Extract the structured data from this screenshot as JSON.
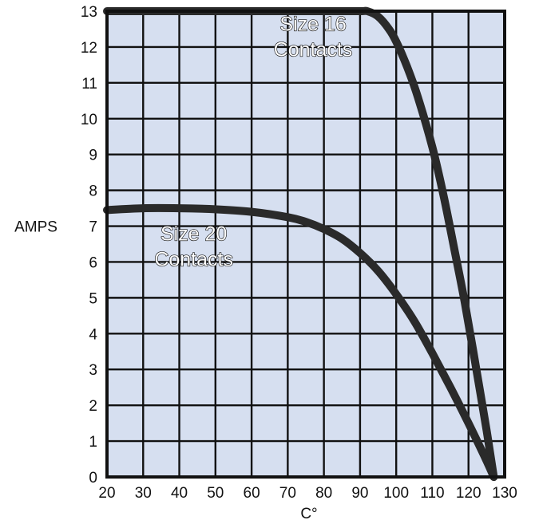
{
  "chart_data": {
    "type": "line",
    "title": "",
    "xlabel": "C°",
    "ylabel": "AMPS",
    "xlim": [
      20,
      130
    ],
    "ylim": [
      0,
      13
    ],
    "xticks": [
      20,
      30,
      40,
      50,
      60,
      70,
      80,
      90,
      100,
      110,
      120,
      130
    ],
    "yticks": [
      0,
      1,
      2,
      3,
      4,
      5,
      6,
      7,
      8,
      9,
      10,
      11,
      12,
      13
    ],
    "grid": true,
    "legend": "none",
    "colors": {
      "plot_background": "#d6dff0",
      "grid": "#111111",
      "series": "#2a2a2a"
    },
    "series": [
      {
        "name_lines": [
          "Size 16",
          "Contacts"
        ],
        "label_at": [
          77,
          12.45
        ],
        "x": [
          20,
          30,
          40,
          50,
          60,
          70,
          80,
          90,
          92,
          95,
          98,
          100,
          103,
          106,
          110,
          113,
          116,
          119,
          122,
          125,
          127
        ],
        "y": [
          13,
          13,
          13,
          13,
          13,
          13,
          13,
          13,
          13,
          12.85,
          12.5,
          12.15,
          11.45,
          10.6,
          9.2,
          7.9,
          6.4,
          4.85,
          3.1,
          1.3,
          0
        ]
      },
      {
        "name_lines": [
          "Size 20",
          "Contacts"
        ],
        "label_at": [
          44,
          6.6
        ],
        "x": [
          20,
          30,
          40,
          50,
          60,
          70,
          75,
          80,
          85,
          90,
          95,
          100,
          105,
          110,
          115,
          120,
          125,
          127
        ],
        "y": [
          7.45,
          7.5,
          7.5,
          7.47,
          7.4,
          7.25,
          7.12,
          6.92,
          6.65,
          6.25,
          5.75,
          5.1,
          4.35,
          3.45,
          2.5,
          1.5,
          0.45,
          0
        ]
      }
    ]
  }
}
